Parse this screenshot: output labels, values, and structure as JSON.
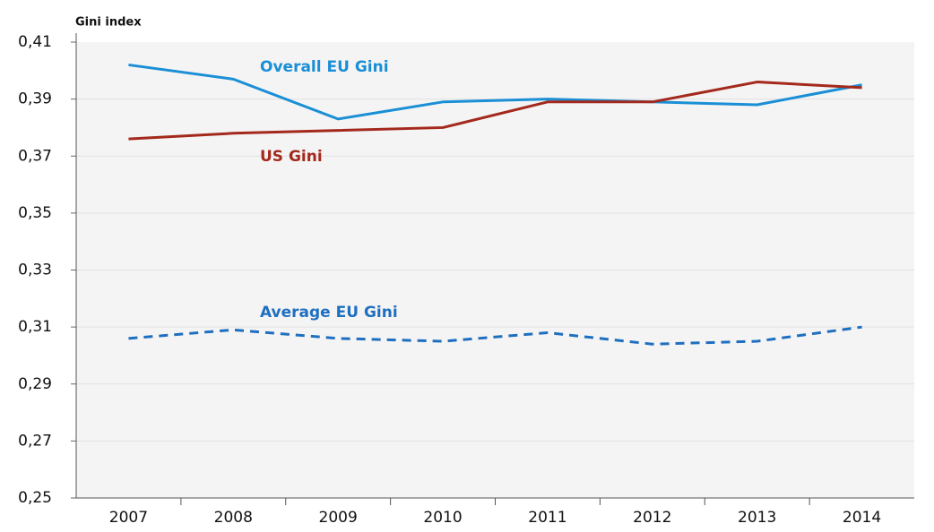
{
  "chart_data": {
    "type": "line",
    "y_label": "Gini index",
    "categories": [
      "2007",
      "2008",
      "2009",
      "2010",
      "2011",
      "2012",
      "2013",
      "2014"
    ],
    "series": [
      {
        "name": "Overall EU Gini",
        "color": "#1a8fd6",
        "dashed": false,
        "values": [
          0.402,
          0.397,
          0.383,
          0.389,
          0.39,
          0.389,
          0.388,
          0.395
        ]
      },
      {
        "name": "US Gini",
        "color": "#a3291c",
        "dashed": false,
        "values": [
          0.376,
          0.378,
          0.379,
          0.38,
          0.389,
          0.389,
          0.396,
          0.394
        ]
      },
      {
        "name": "Average EU Gini",
        "color": "#1f6fc0",
        "dashed": true,
        "values": [
          0.306,
          0.309,
          0.306,
          0.305,
          0.308,
          0.304,
          0.305,
          0.31
        ]
      }
    ],
    "ylim": [
      0.25,
      0.41
    ],
    "yticks": [
      {
        "value": 0.25,
        "label": "0,25"
      },
      {
        "value": 0.27,
        "label": "0,27"
      },
      {
        "value": 0.29,
        "label": "0,29"
      },
      {
        "value": 0.31,
        "label": "0,31"
      },
      {
        "value": 0.33,
        "label": "0,33"
      },
      {
        "value": 0.35,
        "label": "0,35"
      },
      {
        "value": 0.37,
        "label": "0,37"
      },
      {
        "value": 0.39,
        "label": "0,39"
      },
      {
        "value": 0.41,
        "label": "0,41"
      }
    ],
    "grid": true
  }
}
